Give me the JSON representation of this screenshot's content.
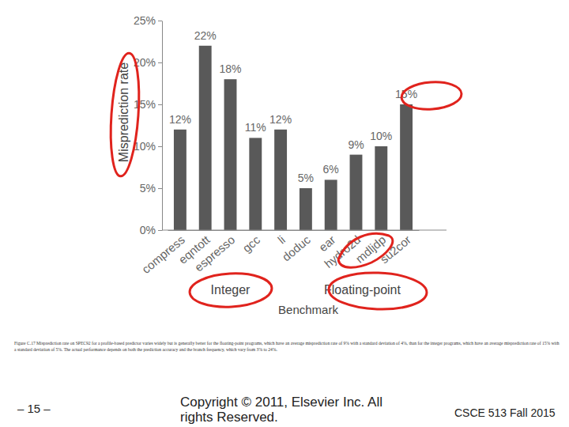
{
  "chart_data": {
    "type": "bar",
    "y_label": "Misprediction rate",
    "x_label": "Benchmark",
    "categories": [
      "compress",
      "eqntott",
      "espresso",
      "gcc",
      "li",
      "doduc",
      "ear",
      "hydro2d",
      "mdljdp",
      "su2cor"
    ],
    "values": [
      12,
      22,
      18,
      11,
      12,
      5,
      6,
      9,
      10,
      15
    ],
    "value_labels": [
      "12%",
      "22%",
      "18%",
      "11%",
      "12%",
      "5%",
      "6%",
      "9%",
      "10%",
      "15%"
    ],
    "groups": [
      {
        "label": "Integer",
        "categories": [
          "compress",
          "eqntott",
          "espresso",
          "gcc",
          "li"
        ]
      },
      {
        "label": "Floating-point",
        "categories": [
          "doduc",
          "ear",
          "hydro2d",
          "mdljdp",
          "su2cor"
        ]
      }
    ],
    "color": "#595959",
    "ylim": [
      0,
      25
    ],
    "yticks": [
      {
        "value": 0,
        "label": "0%"
      },
      {
        "value": 5,
        "label": "5%"
      },
      {
        "value": 10,
        "label": "10%"
      },
      {
        "value": 15,
        "label": "15%"
      },
      {
        "value": 20,
        "label": "20%"
      },
      {
        "value": 25,
        "label": "25%"
      }
    ],
    "grid": false,
    "data_labels": true
  },
  "slide": {
    "caption": "Figure C.17 Misprediction rate on SPEC92 for a profile-based predictor varies widely but is generally better for the floating-point programs, which have an average misprediction rate of 9% with a standard deviation of 4%, than for the integer programs, which have an average misprediction rate of 15% with a standard deviation of 5%. The actual performance depends on both the prediction accuracy and the branch frequency, which vary from 3% to 24%.",
    "page": "– 15 –",
    "copyright": "Copyright © 2011, Elsevier Inc. All rights Reserved.",
    "course": "CSCE 513 Fall 2015"
  }
}
